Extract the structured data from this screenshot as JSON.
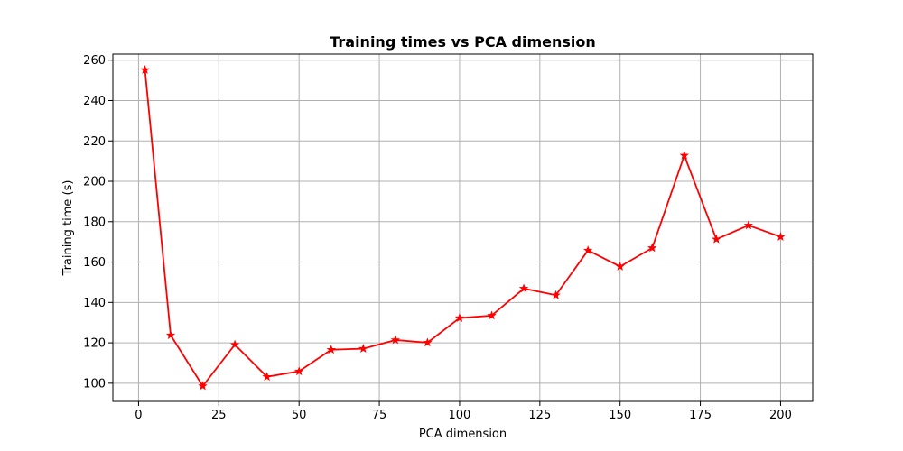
{
  "chart_data": {
    "type": "line",
    "title": "Training times vs PCA dimension",
    "xlabel": "PCA dimension",
    "ylabel": "Training time (s)",
    "xlim": [
      -8,
      210
    ],
    "ylim": [
      91,
      263
    ],
    "xticks": [
      0,
      25,
      50,
      75,
      100,
      125,
      150,
      175,
      200
    ],
    "yticks": [
      100,
      120,
      140,
      160,
      180,
      200,
      220,
      240,
      260
    ],
    "grid": true,
    "series": [
      {
        "color": "#ff0000",
        "marker": "star",
        "x": [
          2,
          10,
          20,
          30,
          40,
          50,
          60,
          70,
          80,
          90,
          100,
          110,
          120,
          130,
          140,
          150,
          160,
          170,
          180,
          190,
          200
        ],
        "values": [
          255.2,
          123.8,
          98.6,
          119.1,
          103.2,
          105.9,
          116.6,
          117.1,
          121.4,
          120.1,
          132.3,
          133.5,
          146.9,
          143.6,
          165.8,
          157.8,
          167.0,
          212.8,
          171.3,
          178.2,
          172.5
        ]
      }
    ]
  }
}
